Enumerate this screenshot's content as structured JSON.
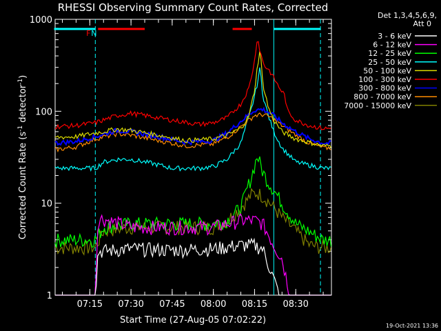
{
  "chart_data": {
    "type": "line",
    "title": "RHESSI Observing Summary Count Rates, Corrected",
    "xlabel": "Start Time (27-Aug-05 07:02:22)",
    "ylabel_main": "Corrected Count Rate (s",
    "ylabel_sup1": "-1",
    "ylabel_mid": " detector",
    "ylabel_sup2": "-1",
    "ylabel_end": ")",
    "y_scale": "log",
    "ylim": [
      1,
      1000
    ],
    "y_ticks": [
      {
        "value": 1,
        "label": "1"
      },
      {
        "value": 10,
        "label": "10"
      },
      {
        "value": 100,
        "label": "100"
      },
      {
        "value": 1000,
        "label": "1000"
      }
    ],
    "xlim": [
      "07:02:22",
      "08:43:00"
    ],
    "x_ticks": [
      {
        "value": "07:15",
        "label": "07:15"
      },
      {
        "value": "07:30",
        "label": "07:30"
      },
      {
        "value": "07:45",
        "label": "07:45"
      },
      {
        "value": "08:00",
        "label": "08:00"
      },
      {
        "value": "08:15",
        "label": "08:15"
      },
      {
        "value": "08:30",
        "label": "08:30"
      }
    ],
    "legend_position": "right",
    "legend_header": [
      "Det 1,3,4,5,6,9,",
      "Att 0"
    ],
    "series": [
      {
        "name": "3 - 6 keV",
        "color": "#ffffff",
        "x": [
          "07:02",
          "07:10",
          "07:17",
          "07:18",
          "07:30",
          "07:45",
          "08:00",
          "08:10",
          "08:15",
          "08:18",
          "08:22",
          "08:24",
          "08:40"
        ],
        "y": [
          1,
          1,
          1,
          3.0,
          3.2,
          3.1,
          3.2,
          3.5,
          3.5,
          3.2,
          1.5,
          1,
          1
        ]
      },
      {
        "name": "6 - 12 keV",
        "color": "#ff00ff",
        "x": [
          "07:02",
          "07:12",
          "07:17",
          "07:18",
          "07:30",
          "07:45",
          "08:00",
          "08:05",
          "08:10",
          "08:15",
          "08:18",
          "08:22",
          "08:25",
          "08:28",
          "08:40"
        ],
        "y": [
          1,
          1,
          1,
          7.0,
          5.5,
          5.5,
          5.5,
          6.0,
          6.5,
          6.5,
          6.0,
          3.5,
          2.5,
          1,
          1
        ]
      },
      {
        "name": "12 - 25 keV",
        "color": "#00ff00",
        "x": [
          "07:02",
          "07:17",
          "07:20",
          "07:30",
          "07:45",
          "08:00",
          "08:05",
          "08:10",
          "08:14",
          "08:16",
          "08:18",
          "08:20",
          "08:22",
          "08:25",
          "08:30",
          "08:40"
        ],
        "y": [
          4.0,
          4.0,
          5.5,
          6.0,
          6.0,
          6.0,
          6.5,
          9.0,
          20,
          33,
          22,
          17,
          14,
          10,
          6.0,
          4.0
        ]
      },
      {
        "name": "25 - 50 keV",
        "color": "#00ffff",
        "x": [
          "07:02",
          "07:12",
          "07:17",
          "07:20",
          "07:25",
          "07:30",
          "07:38",
          "07:45",
          "07:55",
          "08:00",
          "08:05",
          "08:10",
          "08:14",
          "08:16",
          "08:17",
          "08:18",
          "08:20",
          "08:22",
          "08:25",
          "08:30",
          "08:40"
        ],
        "y": [
          24,
          24,
          24,
          28,
          30,
          30,
          27,
          24,
          24,
          25,
          30,
          45,
          110,
          200,
          300,
          150,
          90,
          60,
          40,
          28,
          24
        ]
      },
      {
        "name": "50 - 100 keV",
        "color": "#dddd00",
        "x": [
          "07:02",
          "07:10",
          "07:17",
          "07:25",
          "07:30",
          "07:40",
          "07:50",
          "08:00",
          "08:05",
          "08:10",
          "08:13",
          "08:15",
          "08:16",
          "08:17",
          "08:18",
          "08:19",
          "08:20",
          "08:22",
          "08:25",
          "08:30",
          "08:40"
        ],
        "y": [
          52,
          53,
          58,
          64,
          62,
          55,
          48,
          50,
          55,
          65,
          90,
          170,
          300,
          480,
          200,
          150,
          110,
          80,
          60,
          50,
          42
        ]
      },
      {
        "name": "100 - 300 keV",
        "color": "#ff0000",
        "x": [
          "07:02",
          "07:10",
          "07:17",
          "07:25",
          "07:30",
          "07:35",
          "07:45",
          "07:55",
          "08:00",
          "08:05",
          "08:10",
          "08:13",
          "08:15",
          "08:16",
          "08:17",
          "08:18",
          "08:19",
          "08:20",
          "08:22",
          "08:24",
          "08:26",
          "08:27",
          "08:30",
          "08:35",
          "08:40"
        ],
        "y": [
          68,
          70,
          75,
          90,
          95,
          90,
          80,
          72,
          75,
          85,
          120,
          180,
          350,
          650,
          450,
          350,
          300,
          290,
          230,
          180,
          150,
          100,
          80,
          70,
          65
        ]
      },
      {
        "name": "300 - 800 keV",
        "color": "#0000ff",
        "x": [
          "07:02",
          "07:10",
          "07:17",
          "07:25",
          "07:30",
          "07:40",
          "07:50",
          "08:00",
          "08:05",
          "08:10",
          "08:15",
          "08:18",
          "08:20",
          "08:22",
          "08:25",
          "08:30",
          "08:35",
          "08:40"
        ],
        "y": [
          45,
          47,
          53,
          62,
          60,
          53,
          46,
          48,
          58,
          78,
          103,
          105,
          98,
          90,
          75,
          60,
          50,
          45
        ]
      },
      {
        "name": "800 - 7000 keV",
        "color": "#ff8c00",
        "x": [
          "07:02",
          "07:10",
          "07:17",
          "07:25",
          "07:30",
          "07:40",
          "07:50",
          "08:00",
          "08:05",
          "08:10",
          "08:15",
          "08:18",
          "08:20",
          "08:22",
          "08:25",
          "08:30",
          "08:35",
          "08:40"
        ],
        "y": [
          38,
          41,
          50,
          57,
          55,
          48,
          42,
          44,
          52,
          68,
          90,
          92,
          88,
          82,
          70,
          55,
          45,
          40
        ]
      },
      {
        "name": "7000 - 15000 keV",
        "color": "#808000",
        "x": [
          "07:02",
          "07:17",
          "07:20",
          "07:30",
          "07:45",
          "08:00",
          "08:05",
          "08:10",
          "08:14",
          "08:16",
          "08:18",
          "08:20",
          "08:22",
          "08:25",
          "08:30",
          "08:35",
          "08:40"
        ],
        "y": [
          3.3,
          3.3,
          5.0,
          5.5,
          5.5,
          5.5,
          6.5,
          9.0,
          12.5,
          13.0,
          12.0,
          10.5,
          9.0,
          7.0,
          5.0,
          3.5,
          3.3
        ]
      }
    ],
    "annotations": [
      {
        "text": "F",
        "color": "#ff0000",
        "x": "07:15"
      },
      {
        "text": "N",
        "color": "#00ffff",
        "x": "07:17"
      }
    ],
    "flag_bars": [
      {
        "color": "#00ffff",
        "x0": "07:02",
        "x1": "07:17"
      },
      {
        "color": "#ff0000",
        "x0": "07:18",
        "x1": "07:35"
      },
      {
        "color": "#ff0000",
        "x0": "08:07",
        "x1": "08:14"
      },
      {
        "color": "#00ffff",
        "x0": "08:22",
        "x1": "08:39"
      }
    ],
    "vlines": [
      {
        "x": "07:17",
        "style": "dashed",
        "color": "#00ffff"
      },
      {
        "x": "08:22",
        "style": "solid",
        "color": "#00ffff"
      },
      {
        "x": "08:39",
        "style": "dashed",
        "color": "#00ffff"
      }
    ],
    "timestamp": "19-Oct-2021 13:36"
  }
}
